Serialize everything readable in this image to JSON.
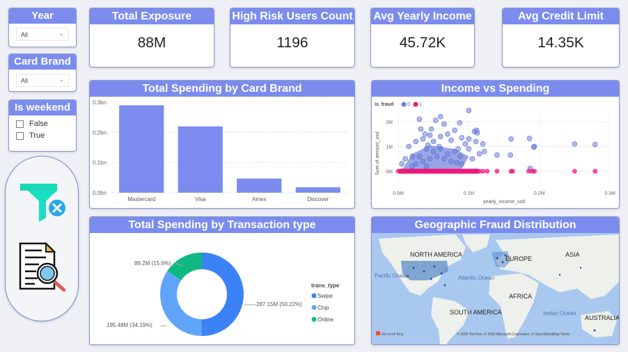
{
  "slicers": {
    "year": {
      "title": "Year",
      "selected": "All"
    },
    "card_brand": {
      "title": "Card Brand",
      "selected": "All"
    },
    "is_weekend": {
      "title": "Is weekend",
      "options": [
        "False",
        "True"
      ]
    }
  },
  "actions": {
    "clear_filters": "clear-filters",
    "report_details": "report-details"
  },
  "kpis": [
    {
      "label": "Total Exposure",
      "value": "88M"
    },
    {
      "label": "High Risk Users Count",
      "value": "1196"
    },
    {
      "label": "Avg Yearly Income",
      "value": "45.72K"
    },
    {
      "label": "Avg Credit Limit",
      "value": "14.35K"
    }
  ],
  "colors": {
    "accent": "#7b8cee",
    "bar": "#7b8cee",
    "fraud0": "#6c7fdc",
    "fraud1": "#f0167a",
    "swipe": "#3b82f6",
    "chip": "#60a5fa",
    "online": "#10b981"
  },
  "chart_data": [
    {
      "type": "bar",
      "title": "Total Spending by Card Brand",
      "categories": [
        "Mastercard",
        "Visa",
        "Amex",
        "Discover"
      ],
      "values": [
        0.29,
        0.22,
        0.047,
        0.018
      ],
      "unit": "bn",
      "ylim": [
        0,
        0.3
      ],
      "yticks": [
        "0.0bn",
        "0.1bn",
        "0.2bn",
        "0.3bn"
      ],
      "xlabel": "",
      "ylabel": "",
      "grid": true
    },
    {
      "type": "scatter",
      "title": "Income vs Spending",
      "xlabel": "yearly_income_usd",
      "ylabel": "Sum of amount_usd",
      "xlim": [
        0,
        0.3
      ],
      "ylim": [
        -0.5,
        2.5
      ],
      "xticks": [
        "0.0M",
        "0.1M",
        "0.2M",
        "0.3M"
      ],
      "yticks": [
        "0M",
        "1M",
        "2M"
      ],
      "legend": {
        "title": "is_fraud",
        "entries": [
          "0",
          "1"
        ],
        "position": "top-left"
      },
      "series": [
        {
          "name": "0",
          "points": [
            [
              0.1,
              2.45
            ],
            [
              0.06,
              2.2
            ],
            [
              0.03,
              2.1
            ],
            [
              0.053,
              2.05
            ],
            [
              0.065,
              1.9
            ],
            [
              0.087,
              1.95
            ],
            [
              0.032,
              1.7
            ],
            [
              0.047,
              1.7
            ],
            [
              0.08,
              1.65
            ],
            [
              0.108,
              1.6
            ],
            [
              0.111,
              1.65
            ],
            [
              0.112,
              1.55
            ],
            [
              0.038,
              1.5
            ],
            [
              0.045,
              1.45
            ],
            [
              0.06,
              1.4
            ],
            [
              0.07,
              1.5
            ],
            [
              0.09,
              1.35
            ],
            [
              0.1,
              1.3
            ],
            [
              0.035,
              1.3
            ],
            [
              0.025,
              1.2
            ],
            [
              0.015,
              1.0
            ],
            [
              0.05,
              1.2
            ],
            [
              0.075,
              1.25
            ],
            [
              0.11,
              1.2
            ],
            [
              0.12,
              1.1
            ],
            [
              0.095,
              1.1
            ],
            [
              0.16,
              1.3
            ],
            [
              0.186,
              1.32
            ],
            [
              0.193,
              1.0
            ],
            [
              0.192,
              0.97
            ],
            [
              0.25,
              1.1
            ],
            [
              0.279,
              1.08
            ],
            [
              0.14,
              0.65
            ],
            [
              0.159,
              0.65
            ],
            [
              0.122,
              0.8
            ],
            [
              0.115,
              0.7
            ],
            [
              0.105,
              0.5
            ],
            [
              0.088,
              0.6
            ],
            [
              0.083,
              0.35
            ],
            [
              0.09,
              0.3
            ],
            [
              0.02,
              0.6
            ],
            [
              0.01,
              0.5
            ],
            [
              0.005,
              0.3
            ],
            [
              0.04,
              0.9
            ],
            [
              0.05,
              0.8
            ],
            [
              0.03,
              0.6
            ],
            [
              0.06,
              0.9
            ],
            [
              0.07,
              0.7
            ],
            [
              0.045,
              0.5
            ],
            [
              0.055,
              0.6
            ],
            [
              0.035,
              0.4
            ],
            [
              0.065,
              0.5
            ],
            [
              0.025,
              0.3
            ],
            [
              0.075,
              0.4
            ],
            [
              0.04,
              0.2
            ],
            [
              0.02,
              0.2
            ],
            [
              0.08,
              0.8
            ],
            [
              0.085,
              0.9
            ],
            [
              0.1,
              0.9
            ],
            [
              0.058,
              1.0
            ],
            [
              0.042,
              1.05
            ],
            [
              0.187,
              0.12
            ]
          ]
        },
        {
          "name": "1",
          "points": [
            [
              0.0,
              0.0
            ],
            [
              0.02,
              0.0
            ],
            [
              0.04,
              0.0
            ],
            [
              0.06,
              0.0
            ],
            [
              0.08,
              0.0
            ],
            [
              0.1,
              0.0
            ],
            [
              0.11,
              0.0
            ],
            [
              0.115,
              0.0
            ],
            [
              0.12,
              0.0
            ],
            [
              0.126,
              0.0
            ],
            [
              0.14,
              0.0
            ],
            [
              0.16,
              0.0
            ],
            [
              0.162,
              0.0
            ],
            [
              0.185,
              0.0
            ],
            [
              0.19,
              0.0
            ],
            [
              0.193,
              0.0
            ],
            [
              0.25,
              0.0
            ],
            [
              0.279,
              0.0
            ]
          ]
        }
      ],
      "grid": true
    },
    {
      "type": "pie",
      "title": "Total Spending by Transaction type",
      "donut": true,
      "legend": {
        "title": "trans_type",
        "entries": [
          "Swipe",
          "Chip",
          "Online"
        ],
        "position": "right"
      },
      "slices": [
        {
          "label": "Swipe",
          "value": 287.15,
          "percent": 50.22,
          "data_label": "287.15M (50.22%)"
        },
        {
          "label": "Chip",
          "value": 195.48,
          "percent": 34.19,
          "data_label": "195.48M (34.19%)"
        },
        {
          "label": "Online",
          "value": 89.2,
          "percent": 15.6,
          "data_label": "89.2M (15.6%)"
        }
      ]
    }
  ],
  "map": {
    "title": "Geographic Fraud Distribution",
    "labels": [
      "NORTH AMERICA",
      "EUROPE",
      "ASIA",
      "AFRICA",
      "SOUTH AMERICA",
      "AUSTRALIA"
    ],
    "ocean_labels": [
      "Pacific Ocean",
      "Atlantic Ocean",
      "Indian Ocean"
    ],
    "provider": "Microsoft Bing",
    "attribution": "© 2026 TomTom, © 2026 Microsoft Corporation, © OpenStreetMap  Terms"
  }
}
